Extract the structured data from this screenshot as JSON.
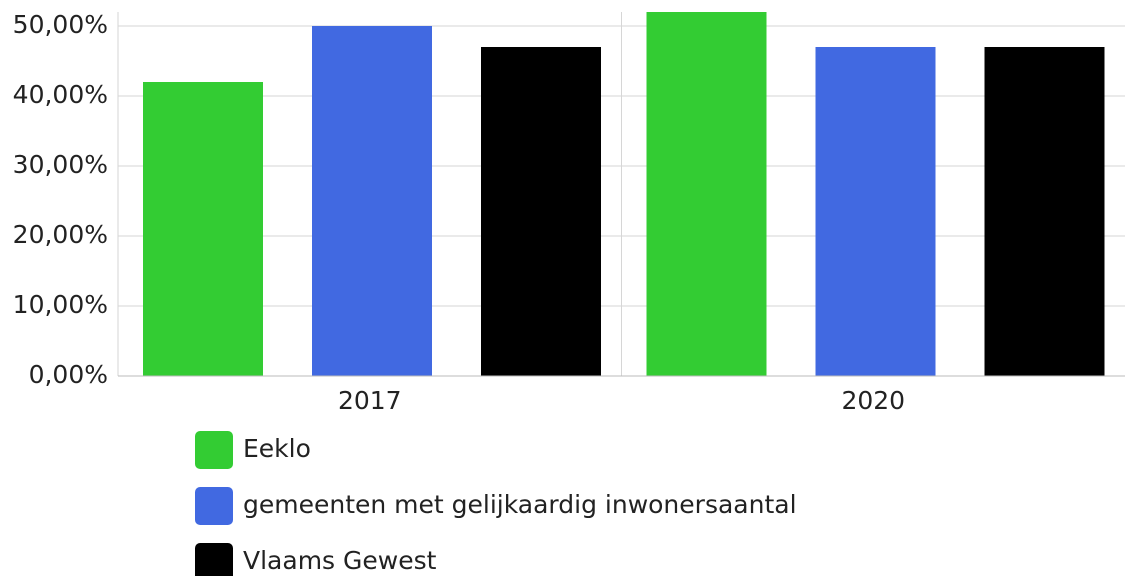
{
  "chart_data": {
    "type": "bar",
    "categories": [
      "2017",
      "2020"
    ],
    "series": [
      {
        "name": "Eeklo",
        "color": "#33cc33",
        "values": [
          42,
          52
        ]
      },
      {
        "name": "gemeenten met gelijkaardig inwonersaantal",
        "color": "#4169e1",
        "values": [
          50,
          47
        ]
      },
      {
        "name": "Vlaams Gewest",
        "color": "#000000",
        "values": [
          47,
          47
        ]
      }
    ],
    "ylim": [
      0,
      52
    ],
    "yticks": [
      {
        "value": 0,
        "label": "0,00%"
      },
      {
        "value": 10,
        "label": "10,00%"
      },
      {
        "value": 20,
        "label": "20,00%"
      },
      {
        "value": 30,
        "label": "30,00%"
      },
      {
        "value": 40,
        "label": "40,00%"
      },
      {
        "value": 50,
        "label": "50,00%"
      }
    ],
    "grid": true,
    "legend": "bottom"
  }
}
